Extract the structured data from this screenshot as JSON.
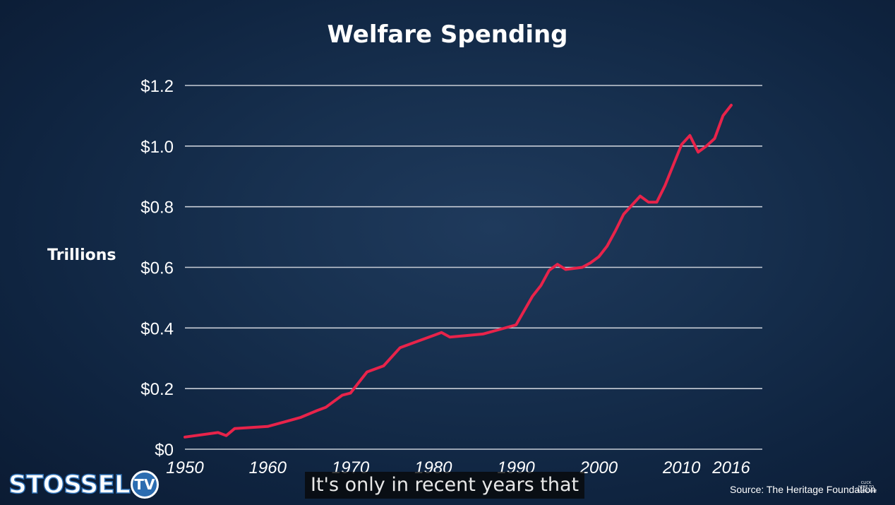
{
  "chart_data": {
    "type": "line",
    "title": "Welfare Spending",
    "ylabel": "Trillions",
    "xlabel": "",
    "ylim": [
      0,
      1.2
    ],
    "xlim": [
      1950,
      2016
    ],
    "y_ticks": [
      {
        "value": 0,
        "label": "$0"
      },
      {
        "value": 0.2,
        "label": "$0.2"
      },
      {
        "value": 0.4,
        "label": "$0.4"
      },
      {
        "value": 0.6,
        "label": "$0.6"
      },
      {
        "value": 0.8,
        "label": "$0.8"
      },
      {
        "value": 1.0,
        "label": "$1.0"
      },
      {
        "value": 1.2,
        "label": "$1.2"
      }
    ],
    "x_ticks": [
      {
        "value": 1950,
        "label": "1950"
      },
      {
        "value": 1960,
        "label": "1960"
      },
      {
        "value": 1970,
        "label": "1970"
      },
      {
        "value": 1980,
        "label": "1980"
      },
      {
        "value": 1990,
        "label": "1990"
      },
      {
        "value": 2000,
        "label": "2000"
      },
      {
        "value": 2010,
        "label": "2010"
      },
      {
        "value": 2016,
        "label": "2016"
      }
    ],
    "grid": true,
    "color": "#e8234a",
    "series": [
      {
        "x": [
          1950,
          1954,
          1955,
          1956,
          1960,
          1962,
          1964,
          1966,
          1967,
          1968,
          1969,
          1970,
          1972,
          1974,
          1976,
          1978,
          1980,
          1981,
          1982,
          1984,
          1986,
          1988,
          1990,
          1992,
          1993,
          1994,
          1995,
          1996,
          1998,
          1999,
          2000,
          2001,
          2002,
          2003,
          2005,
          2006,
          2007,
          2008,
          2010,
          2011,
          2012,
          2013,
          2014,
          2015,
          2016
        ],
        "y": [
          0.04,
          0.055,
          0.045,
          0.068,
          0.075,
          0.09,
          0.105,
          0.128,
          0.138,
          0.158,
          0.178,
          0.185,
          0.255,
          0.275,
          0.335,
          0.355,
          0.375,
          0.385,
          0.37,
          0.375,
          0.38,
          0.395,
          0.41,
          0.505,
          0.54,
          0.59,
          0.61,
          0.593,
          0.6,
          0.615,
          0.635,
          0.67,
          0.72,
          0.775,
          0.835,
          0.815,
          0.815,
          0.87,
          1.005,
          1.035,
          0.98,
          1.0,
          1.025,
          1.1,
          1.135
        ]
      }
    ]
  },
  "source": "Source: The Heritage Foundation",
  "logo": {
    "text": "STOSSEL",
    "badge": "TV"
  },
  "caption": "It's only in recent years that",
  "click_here": "CLICK HERE TO SUBSCRIBE"
}
